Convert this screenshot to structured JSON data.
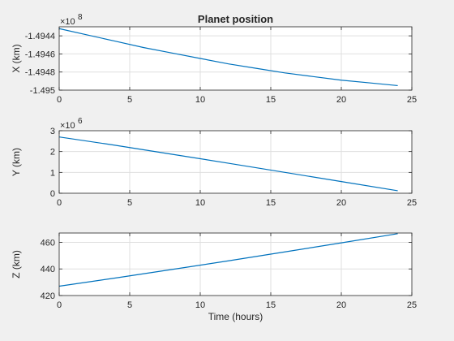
{
  "chart_data": [
    {
      "type": "line",
      "title": "Planet position",
      "xlabel": "",
      "ylabel": "X (km)",
      "xlim": [
        0,
        25
      ],
      "ylim": [
        -1.495,
        -1.4943
      ],
      "x_ticks": [
        0,
        5,
        10,
        15,
        20,
        25
      ],
      "y_ticks": [
        -1.495,
        -1.4948,
        -1.4946,
        -1.4944
      ],
      "exponent_label": "×10",
      "exponent_power": "8",
      "grid": true,
      "series": [
        {
          "x": [
            0,
            2,
            4,
            6,
            8,
            10,
            12,
            14,
            16,
            18,
            20,
            22,
            24
          ],
          "values": [
            -1.49432,
            -1.49439,
            -1.49446,
            -1.49453,
            -1.49459,
            -1.49465,
            -1.49471,
            -1.49476,
            -1.49481,
            -1.49485,
            -1.49489,
            -1.49492,
            -1.49495
          ]
        }
      ]
    },
    {
      "type": "line",
      "title": "",
      "xlabel": "",
      "ylabel": "Y (km)",
      "xlim": [
        0,
        25
      ],
      "ylim": [
        0,
        3
      ],
      "x_ticks": [
        0,
        5,
        10,
        15,
        20,
        25
      ],
      "y_ticks": [
        0,
        1,
        2,
        3
      ],
      "exponent_label": "×10",
      "exponent_power": "6",
      "grid": true,
      "series": [
        {
          "x": [
            0,
            4,
            8,
            12,
            16,
            20,
            24
          ],
          "values": [
            2.7,
            2.3,
            1.87,
            1.44,
            1.0,
            0.56,
            0.12
          ]
        }
      ]
    },
    {
      "type": "line",
      "title": "",
      "xlabel": "Time (hours)",
      "ylabel": "Z (km)",
      "xlim": [
        0,
        25
      ],
      "ylim": [
        420,
        467
      ],
      "x_ticks": [
        0,
        5,
        10,
        15,
        20,
        25
      ],
      "y_ticks": [
        420,
        440,
        460
      ],
      "exponent_label": "",
      "exponent_power": "",
      "grid": true,
      "series": [
        {
          "x": [
            0,
            4,
            8,
            12,
            16,
            20,
            24
          ],
          "values": [
            427,
            433.2,
            439.6,
            446.1,
            452.8,
            459.6,
            466.5
          ]
        }
      ]
    }
  ],
  "style": {
    "figure_background": "#f0f0f0",
    "axes_background": "#ffffff",
    "line_color": "#0072bd",
    "grid_color": "#dfdfdf",
    "axis_color": "#262626"
  }
}
